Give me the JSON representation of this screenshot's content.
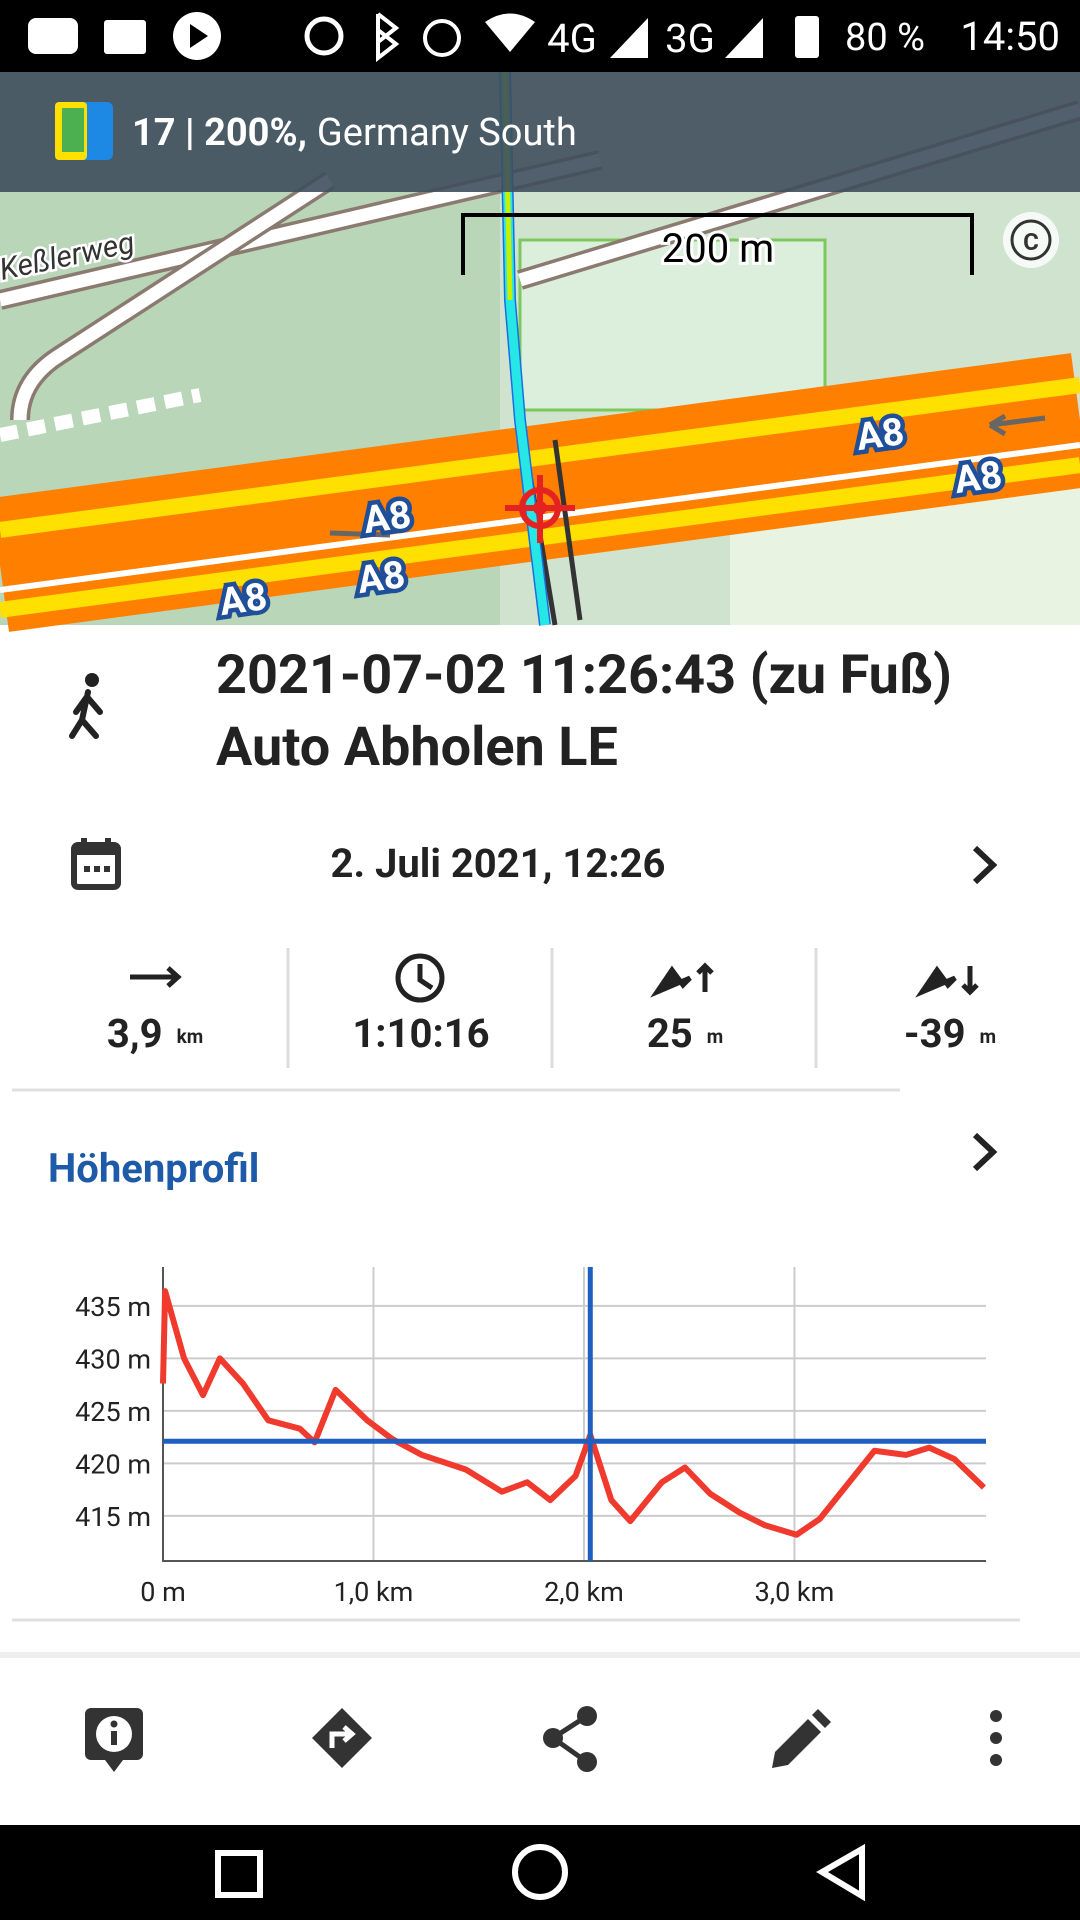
{
  "status_bar": {
    "network": [
      "4G",
      "3G"
    ],
    "battery": "80 %",
    "time": "14:50"
  },
  "map": {
    "zoom": "17 | 200%,",
    "map_name": "Germany South",
    "scale": "200 m",
    "street": "Keßlerweg",
    "road_labels": [
      "A8",
      "A8",
      "A8",
      "A8",
      "A8"
    ]
  },
  "track": {
    "title": "2021-07-02 11:26:43 (zu Fuß) Auto Abholen LE",
    "date": "2. Juli 2021, 12:26"
  },
  "stats": [
    {
      "value": "3,9",
      "unit": "km"
    },
    {
      "value": "1:10:16"
    },
    {
      "value": "25",
      "unit": "m"
    },
    {
      "value": "-39",
      "unit": "m"
    }
  ],
  "elevation": {
    "title": "Höhenprofil",
    "chart_data": {
      "type": "line",
      "x": [
        0,
        0.01,
        0.1,
        0.19,
        0.27,
        0.38,
        0.5,
        0.65,
        0.72,
        0.82,
        0.97,
        1.09,
        1.23,
        1.44,
        1.61,
        1.73,
        1.84,
        1.96,
        2.03,
        2.13,
        2.22,
        2.37,
        2.48,
        2.6,
        2.74,
        2.86,
        3.01,
        3.12,
        3.24,
        3.38,
        3.53,
        3.64,
        3.76,
        3.9
      ],
      "series": [
        {
          "color": "#f03a2e",
          "values": [
            427.6,
            436.4,
            430,
            426.5,
            430,
            427.6,
            424.1,
            423.3,
            422,
            427,
            424.1,
            422.3,
            420.8,
            419.4,
            417.3,
            418.2,
            416.5,
            418.8,
            422.7,
            416.5,
            414.5,
            418.2,
            419.6,
            417.1,
            415.3,
            414.1,
            413.2,
            414.7,
            417.7,
            421.2,
            420.8,
            421.5,
            420.4,
            417.7
          ]
        }
      ],
      "xlim": [
        0,
        3.91
      ],
      "ylim": [
        410.7,
        438.7
      ],
      "xticks": [
        {
          "value": 0,
          "label": "0 m"
        },
        {
          "value": 1,
          "label": "1,0 km"
        },
        {
          "value": 2,
          "label": "2,0 km"
        },
        {
          "value": 3,
          "label": "3,0 km"
        }
      ],
      "yticks": [
        {
          "value": 415,
          "label": "415 m"
        },
        {
          "value": 420,
          "label": "420 m"
        },
        {
          "value": 425,
          "label": "425 m"
        },
        {
          "value": 430,
          "label": "430 m"
        },
        {
          "value": 435,
          "label": "435 m"
        }
      ],
      "grid": true,
      "cursor": {
        "x": 2.03,
        "y": 422.1,
        "color": "#1f5fbf"
      }
    }
  }
}
